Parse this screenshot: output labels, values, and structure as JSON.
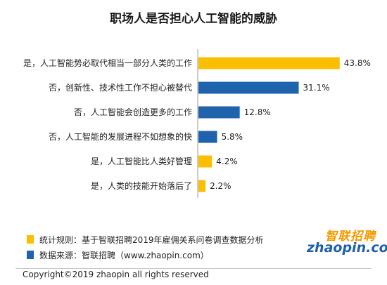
{
  "title": "职场人是否担心人工智能的威胁",
  "chart_data": {
    "type": "bar",
    "orientation": "horizontal",
    "categories": [
      "是，人工智能势必取代相当一部分人类的工作",
      "否，创新性、技术性工作不担心被替代",
      "否，人工智能会创造更多的工作",
      "否，人工智能的发展进程不如想象的快",
      "是，人工智能比人类好管理",
      "是，人类的技能开始落后了"
    ],
    "values": [
      43.8,
      31.1,
      12.8,
      5.8,
      4.2,
      2.2
    ],
    "value_labels": [
      "43.8%",
      "31.1%",
      "12.8%",
      "5.8%",
      "4.2%",
      "2.2%"
    ],
    "groups": [
      "yes",
      "no",
      "no",
      "no",
      "yes",
      "yes"
    ],
    "colors": {
      "yes": "#f9bf00",
      "no": "#1f63ad"
    },
    "xlim": [
      0,
      48
    ],
    "grid": false,
    "legend_position": "bottom-left"
  },
  "notes": [
    {
      "group": "yes",
      "text": "统计规则：基于智联招聘2019年雇佣关系问卷调查数据分析"
    },
    {
      "group": "no",
      "text": "数据来源：智联招聘（www.zhaopin.com）"
    }
  ],
  "logo": {
    "cn": "智联招聘",
    "en": "zhaopin.com"
  },
  "copyright": "Copyright©2019 zhaopin all rights reserved"
}
